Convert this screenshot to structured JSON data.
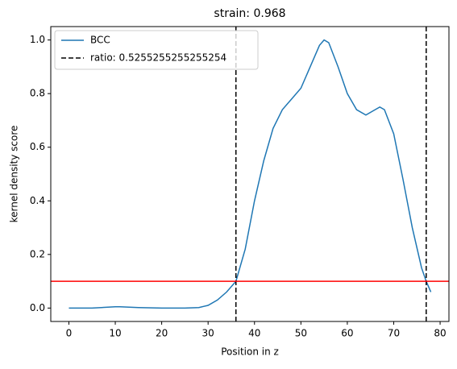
{
  "chart_data": {
    "type": "line",
    "title": "strain: 0.968",
    "x_label": "Position in z",
    "y_label": "kernel density score",
    "x": [
      0,
      5,
      10,
      11,
      15,
      20,
      25,
      28,
      30,
      32,
      34,
      36,
      38,
      40,
      42,
      44,
      46,
      48,
      50,
      52,
      54,
      55,
      56,
      58,
      60,
      62,
      64,
      66,
      67,
      68,
      70,
      72,
      74,
      76,
      77,
      78
    ],
    "series": [
      {
        "name": "BCC",
        "color": "#1f77b4",
        "values": [
          0,
          0,
          0.005,
          0.005,
          0.002,
          0,
          0,
          0.002,
          0.01,
          0.03,
          0.06,
          0.1,
          0.22,
          0.4,
          0.55,
          0.67,
          0.74,
          0.78,
          0.82,
          0.9,
          0.98,
          1.0,
          0.99,
          0.9,
          0.8,
          0.74,
          0.72,
          0.74,
          0.75,
          0.74,
          0.65,
          0.48,
          0.3,
          0.15,
          0.1,
          0.06
        ]
      }
    ],
    "vlines": {
      "name": "ratio: 0.5255255255255254",
      "color": "#000000",
      "values": [
        36,
        77
      ]
    },
    "hline": {
      "value": 0.1,
      "color": "#ff0000"
    },
    "xlim": [
      -3.9,
      81.9
    ],
    "ylim": [
      -0.05,
      1.05
    ],
    "xticks": [
      0,
      10,
      20,
      30,
      40,
      50,
      60,
      70,
      80
    ],
    "yticks": [
      {
        "value": 0,
        "label": "0.0"
      },
      {
        "value": 0.2,
        "label": "0.2"
      },
      {
        "value": 0.4,
        "label": "0.4"
      },
      {
        "value": 0.6,
        "label": "0.6"
      },
      {
        "value": 0.8,
        "label": "0.8"
      },
      {
        "value": 1,
        "label": "1.0"
      }
    ],
    "legend": "upper left"
  }
}
